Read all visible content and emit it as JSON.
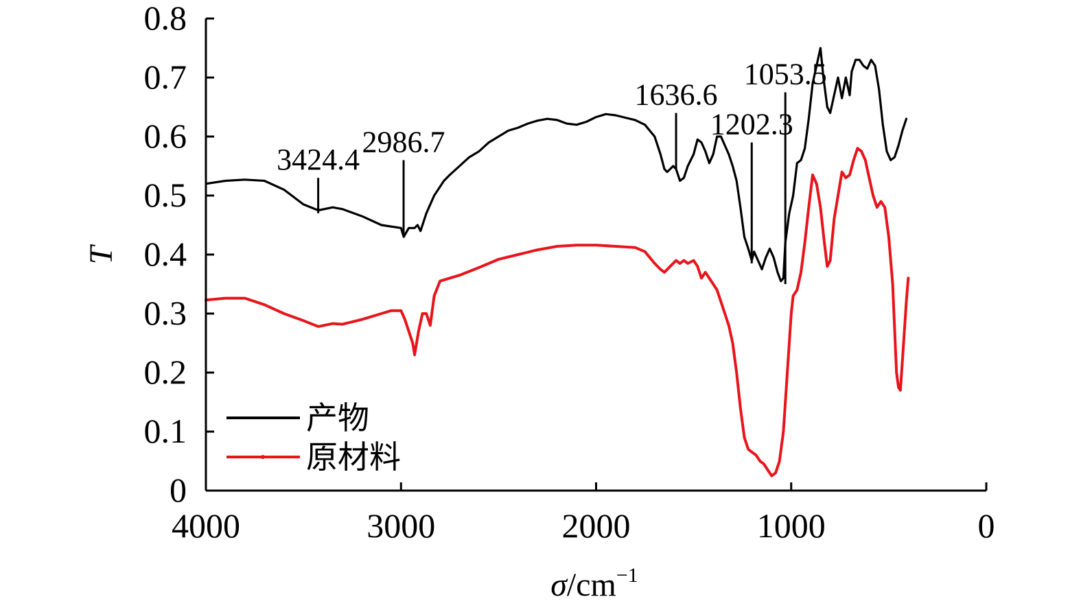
{
  "chart_data": {
    "type": "line",
    "xlabel": "σ/cm⁻¹",
    "xlabel_parts": {
      "symbol": "σ",
      "unit": "/cm",
      "exponent": "−1"
    },
    "ylabel": "T",
    "xlim": [
      4000,
      0
    ],
    "ylim": [
      0,
      0.8
    ],
    "x_reversed": true,
    "grid": false,
    "legend_position": "bottom-left",
    "x_ticks": [
      {
        "value": 4000,
        "label": "4000"
      },
      {
        "value": 3000,
        "label": "3000"
      },
      {
        "value": 2000,
        "label": "2000"
      },
      {
        "value": 1000,
        "label": "1000"
      },
      {
        "value": 0,
        "label": "0"
      }
    ],
    "y_ticks": [
      {
        "value": 0,
        "label": "0"
      },
      {
        "value": 0.1,
        "label": "0.1"
      },
      {
        "value": 0.2,
        "label": "0.2"
      },
      {
        "value": 0.3,
        "label": "0.3"
      },
      {
        "value": 0.4,
        "label": "0.4"
      },
      {
        "value": 0.5,
        "label": "0.5"
      },
      {
        "value": 0.6,
        "label": "0.6"
      },
      {
        "value": 0.7,
        "label": "0.7"
      },
      {
        "value": 0.8,
        "label": "0.8"
      }
    ],
    "series": [
      {
        "name": "产物",
        "color": "#000000",
        "points": [
          [
            4000,
            0.52
          ],
          [
            3900,
            0.525
          ],
          [
            3800,
            0.527
          ],
          [
            3700,
            0.525
          ],
          [
            3600,
            0.51
          ],
          [
            3500,
            0.485
          ],
          [
            3424,
            0.475
          ],
          [
            3350,
            0.48
          ],
          [
            3300,
            0.477
          ],
          [
            3200,
            0.465
          ],
          [
            3100,
            0.45
          ],
          [
            3000,
            0.445
          ],
          [
            2986,
            0.43
          ],
          [
            2960,
            0.445
          ],
          [
            2930,
            0.445
          ],
          [
            2915,
            0.45
          ],
          [
            2900,
            0.44
          ],
          [
            2870,
            0.47
          ],
          [
            2830,
            0.5
          ],
          [
            2780,
            0.525
          ],
          [
            2750,
            0.535
          ],
          [
            2700,
            0.55
          ],
          [
            2650,
            0.565
          ],
          [
            2600,
            0.575
          ],
          [
            2550,
            0.59
          ],
          [
            2500,
            0.6
          ],
          [
            2450,
            0.61
          ],
          [
            2400,
            0.615
          ],
          [
            2350,
            0.622
          ],
          [
            2300,
            0.627
          ],
          [
            2250,
            0.63
          ],
          [
            2200,
            0.628
          ],
          [
            2150,
            0.622
          ],
          [
            2100,
            0.62
          ],
          [
            2050,
            0.625
          ],
          [
            2000,
            0.633
          ],
          [
            1950,
            0.638
          ],
          [
            1900,
            0.636
          ],
          [
            1850,
            0.632
          ],
          [
            1800,
            0.628
          ],
          [
            1750,
            0.62
          ],
          [
            1700,
            0.6
          ],
          [
            1670,
            0.57
          ],
          [
            1650,
            0.545
          ],
          [
            1636,
            0.54
          ],
          [
            1620,
            0.545
          ],
          [
            1605,
            0.55
          ],
          [
            1590,
            0.545
          ],
          [
            1570,
            0.525
          ],
          [
            1550,
            0.53
          ],
          [
            1530,
            0.55
          ],
          [
            1500,
            0.57
          ],
          [
            1480,
            0.595
          ],
          [
            1460,
            0.59
          ],
          [
            1440,
            0.575
          ],
          [
            1420,
            0.555
          ],
          [
            1400,
            0.57
          ],
          [
            1380,
            0.6
          ],
          [
            1360,
            0.6
          ],
          [
            1340,
            0.585
          ],
          [
            1320,
            0.57
          ],
          [
            1300,
            0.55
          ],
          [
            1280,
            0.525
          ],
          [
            1260,
            0.48
          ],
          [
            1240,
            0.43
          ],
          [
            1220,
            0.41
          ],
          [
            1202,
            0.39
          ],
          [
            1190,
            0.405
          ],
          [
            1170,
            0.39
          ],
          [
            1150,
            0.375
          ],
          [
            1130,
            0.395
          ],
          [
            1110,
            0.41
          ],
          [
            1090,
            0.395
          ],
          [
            1070,
            0.37
          ],
          [
            1053,
            0.355
          ],
          [
            1040,
            0.36
          ],
          [
            1030,
            0.42
          ],
          [
            1010,
            0.47
          ],
          [
            990,
            0.5
          ],
          [
            970,
            0.555
          ],
          [
            950,
            0.56
          ],
          [
            930,
            0.58
          ],
          [
            910,
            0.63
          ],
          [
            890,
            0.69
          ],
          [
            870,
            0.72
          ],
          [
            850,
            0.75
          ],
          [
            835,
            0.7
          ],
          [
            815,
            0.65
          ],
          [
            800,
            0.64
          ],
          [
            780,
            0.67
          ],
          [
            760,
            0.7
          ],
          [
            740,
            0.665
          ],
          [
            720,
            0.7
          ],
          [
            700,
            0.67
          ],
          [
            690,
            0.71
          ],
          [
            670,
            0.73
          ],
          [
            650,
            0.73
          ],
          [
            630,
            0.72
          ],
          [
            610,
            0.715
          ],
          [
            590,
            0.73
          ],
          [
            570,
            0.72
          ],
          [
            550,
            0.68
          ],
          [
            530,
            0.62
          ],
          [
            510,
            0.575
          ],
          [
            490,
            0.56
          ],
          [
            470,
            0.565
          ],
          [
            450,
            0.585
          ],
          [
            430,
            0.61
          ],
          [
            410,
            0.63
          ]
        ]
      },
      {
        "name": "原材料",
        "color": "#e8141b",
        "points": [
          [
            4000,
            0.323
          ],
          [
            3900,
            0.326
          ],
          [
            3800,
            0.326
          ],
          [
            3700,
            0.315
          ],
          [
            3600,
            0.3
          ],
          [
            3500,
            0.288
          ],
          [
            3424,
            0.278
          ],
          [
            3350,
            0.283
          ],
          [
            3300,
            0.282
          ],
          [
            3200,
            0.29
          ],
          [
            3100,
            0.3
          ],
          [
            3050,
            0.305
          ],
          [
            3000,
            0.305
          ],
          [
            2980,
            0.29
          ],
          [
            2960,
            0.27
          ],
          [
            2940,
            0.25
          ],
          [
            2930,
            0.23
          ],
          [
            2910,
            0.27
          ],
          [
            2890,
            0.3
          ],
          [
            2870,
            0.3
          ],
          [
            2850,
            0.28
          ],
          [
            2830,
            0.33
          ],
          [
            2800,
            0.355
          ],
          [
            2700,
            0.365
          ],
          [
            2600,
            0.378
          ],
          [
            2500,
            0.392
          ],
          [
            2400,
            0.4
          ],
          [
            2300,
            0.408
          ],
          [
            2200,
            0.414
          ],
          [
            2100,
            0.416
          ],
          [
            2000,
            0.416
          ],
          [
            1900,
            0.414
          ],
          [
            1800,
            0.412
          ],
          [
            1750,
            0.405
          ],
          [
            1700,
            0.385
          ],
          [
            1670,
            0.375
          ],
          [
            1650,
            0.37
          ],
          [
            1620,
            0.38
          ],
          [
            1590,
            0.39
          ],
          [
            1570,
            0.385
          ],
          [
            1550,
            0.39
          ],
          [
            1530,
            0.385
          ],
          [
            1500,
            0.39
          ],
          [
            1480,
            0.38
          ],
          [
            1460,
            0.36
          ],
          [
            1440,
            0.37
          ],
          [
            1420,
            0.36
          ],
          [
            1400,
            0.35
          ],
          [
            1380,
            0.34
          ],
          [
            1360,
            0.32
          ],
          [
            1340,
            0.3
          ],
          [
            1320,
            0.28
          ],
          [
            1300,
            0.25
          ],
          [
            1280,
            0.2
          ],
          [
            1260,
            0.14
          ],
          [
            1240,
            0.09
          ],
          [
            1220,
            0.07
          ],
          [
            1200,
            0.065
          ],
          [
            1180,
            0.06
          ],
          [
            1160,
            0.05
          ],
          [
            1140,
            0.045
          ],
          [
            1120,
            0.035
          ],
          [
            1100,
            0.025
          ],
          [
            1080,
            0.03
          ],
          [
            1060,
            0.05
          ],
          [
            1040,
            0.1
          ],
          [
            1020,
            0.2
          ],
          [
            1000,
            0.3
          ],
          [
            990,
            0.33
          ],
          [
            970,
            0.34
          ],
          [
            950,
            0.37
          ],
          [
            930,
            0.42
          ],
          [
            910,
            0.48
          ],
          [
            890,
            0.535
          ],
          [
            870,
            0.52
          ],
          [
            850,
            0.48
          ],
          [
            830,
            0.42
          ],
          [
            815,
            0.38
          ],
          [
            800,
            0.39
          ],
          [
            780,
            0.46
          ],
          [
            760,
            0.5
          ],
          [
            740,
            0.54
          ],
          [
            720,
            0.53
          ],
          [
            700,
            0.535
          ],
          [
            680,
            0.56
          ],
          [
            660,
            0.58
          ],
          [
            640,
            0.575
          ],
          [
            620,
            0.56
          ],
          [
            600,
            0.53
          ],
          [
            580,
            0.5
          ],
          [
            560,
            0.48
          ],
          [
            540,
            0.49
          ],
          [
            520,
            0.48
          ],
          [
            500,
            0.43
          ],
          [
            480,
            0.35
          ],
          [
            460,
            0.2
          ],
          [
            450,
            0.175
          ],
          [
            440,
            0.17
          ],
          [
            430,
            0.22
          ],
          [
            410,
            0.32
          ],
          [
            400,
            0.36
          ]
        ]
      }
    ],
    "annotations": [
      {
        "label": "3424.4",
        "x": 3424.4,
        "y_from": 0.47,
        "y_to": 0.53
      },
      {
        "label": "2986.7",
        "x": 2986.7,
        "y_from": 0.435,
        "y_to": 0.56
      },
      {
        "label": "1636.6",
        "x": 1590,
        "y_from": 0.545,
        "y_to": 0.64
      },
      {
        "label": "1202.3",
        "x": 1202.3,
        "y_from": 0.385,
        "y_to": 0.59
      },
      {
        "label": "1053.5",
        "x": 1030,
        "y_from": 0.35,
        "y_to": 0.675
      }
    ]
  }
}
